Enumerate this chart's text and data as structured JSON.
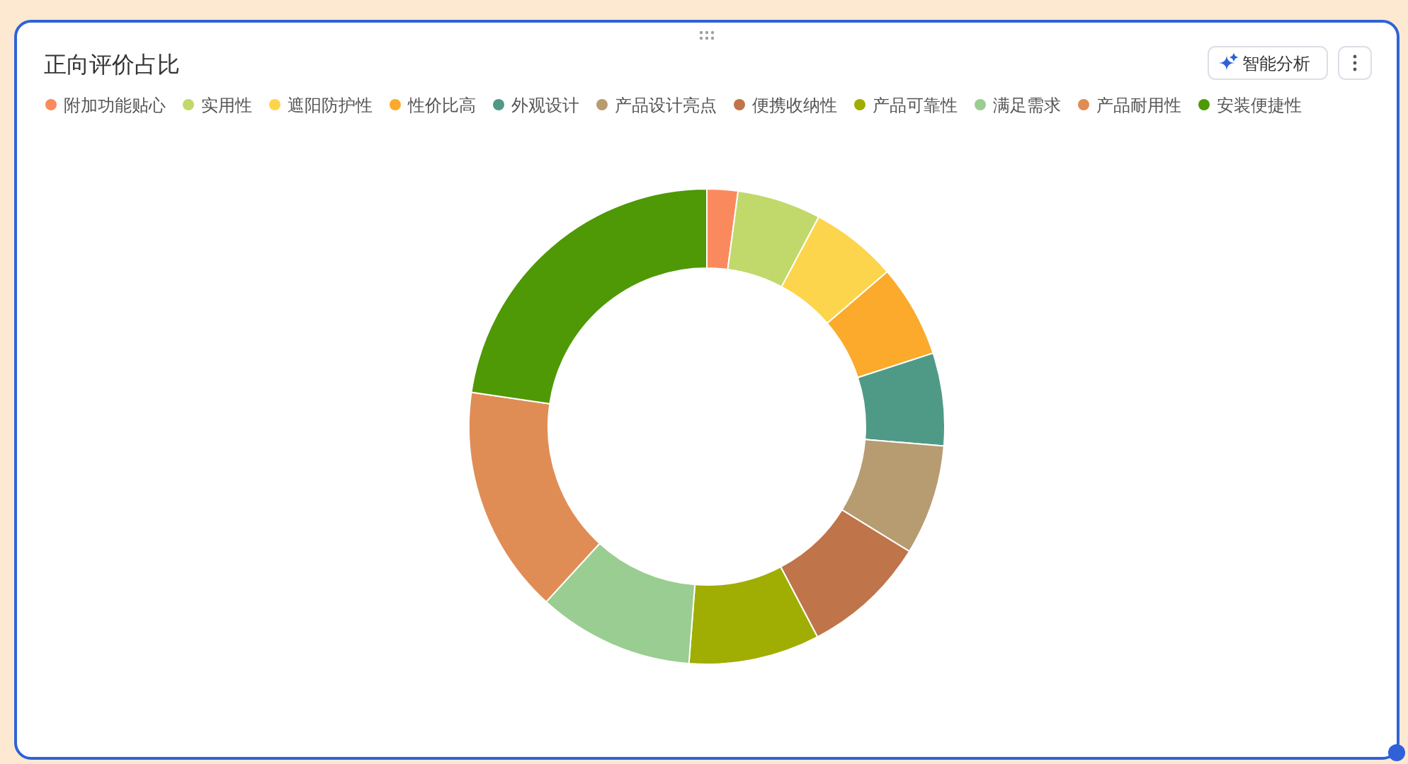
{
  "chart_data": {
    "type": "donut",
    "title": "正向评价占比",
    "categories": [
      "附加功能贴心",
      "实用性",
      "遮阳防护性",
      "性价比高",
      "外观设计",
      "产品设计亮点",
      "便携收纳性",
      "产品可靠性",
      "满足需求",
      "产品耐用性",
      "安装便捷性"
    ],
    "values": [
      2.1,
      5.7,
      5.9,
      6.3,
      6.3,
      7.5,
      8.5,
      8.9,
      10.6,
      15.5,
      22.7
    ],
    "colors": [
      "#fa8a5e",
      "#c0d96a",
      "#fcd54c",
      "#fbaa2c",
      "#4f9a86",
      "#b79c72",
      "#bf744a",
      "#a0ad03",
      "#9acd91",
      "#e08d55",
      "#4e9905"
    ],
    "legend": "top left",
    "annotations": [
      "智能分析"
    ]
  }
}
